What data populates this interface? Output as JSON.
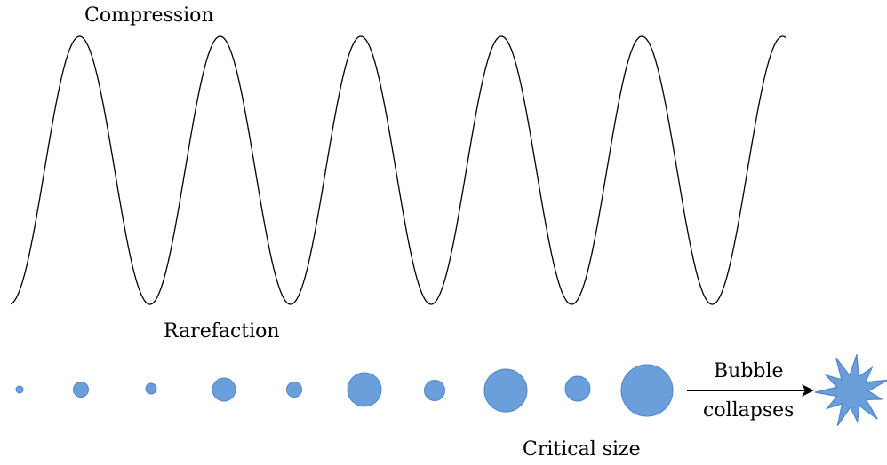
{
  "labels": {
    "compression": "Compression",
    "rarefaction": "Rarefaction",
    "bubble": "Bubble",
    "collapses": "collapses",
    "critical_size": "Critical size"
  },
  "colors": {
    "bubble_fill": "#6a9fdc",
    "bubble_stroke": "#4f86c6",
    "wave_stroke": "#000000",
    "arrow": "#000000"
  },
  "icons": {
    "collapse": "starburst-icon"
  }
}
